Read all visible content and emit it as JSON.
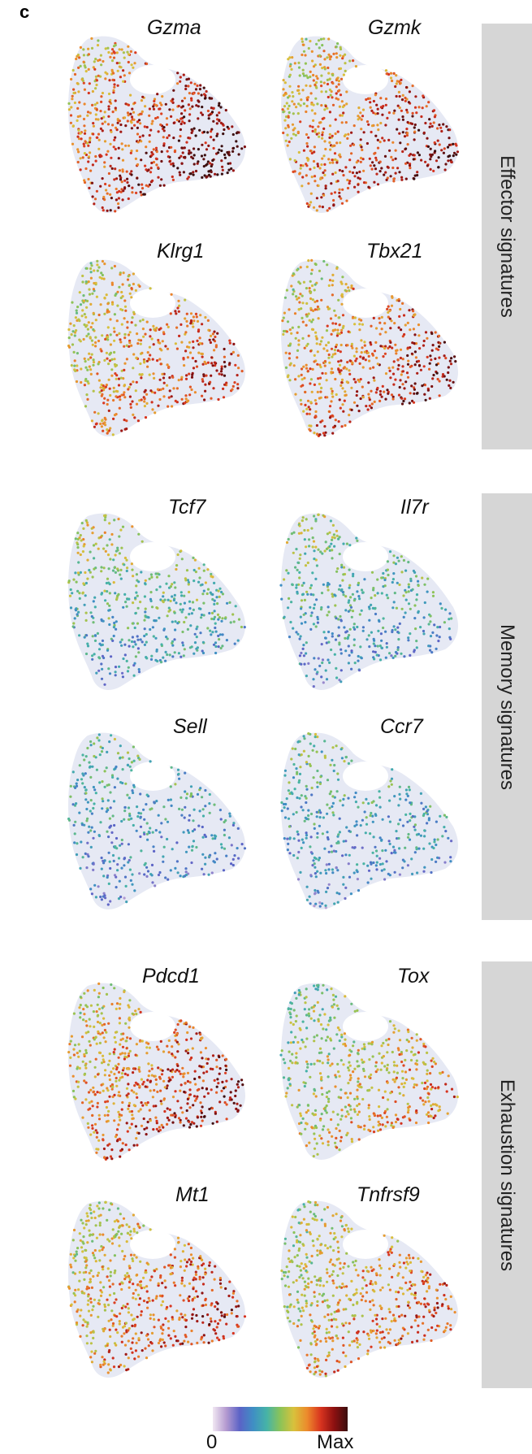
{
  "panel_label": "c",
  "groups": [
    {
      "label": "Effector signatures"
    },
    {
      "label": "Memory signatures"
    },
    {
      "label": "Exhaustion signatures"
    }
  ],
  "genes": [
    {
      "name": "Gzma",
      "group": 0,
      "level": 0.82
    },
    {
      "name": "Gzmk",
      "group": 0,
      "level": 0.75
    },
    {
      "name": "Klrg1",
      "group": 0,
      "level": 0.68
    },
    {
      "name": "Tbx21",
      "group": 0,
      "level": 0.72
    },
    {
      "name": "Tcf7",
      "group": 1,
      "level": 0.48
    },
    {
      "name": "Il7r",
      "group": 1,
      "level": 0.4
    },
    {
      "name": "Sell",
      "group": 1,
      "level": 0.3
    },
    {
      "name": "Ccr7",
      "group": 1,
      "level": 0.32
    },
    {
      "name": "Pdcd1",
      "group": 2,
      "level": 0.72
    },
    {
      "name": "Tox",
      "group": 2,
      "level": 0.55
    },
    {
      "name": "Mt1",
      "group": 2,
      "level": 0.68
    },
    {
      "name": "Tnfrsf9",
      "group": 2,
      "level": 0.62
    }
  ],
  "colorbar": {
    "min_label": "0",
    "max_label": "Max",
    "colors": [
      "#f1e7f2",
      "#b49ad0",
      "#5b63c6",
      "#3f8fc4",
      "#46b3a7",
      "#8bc358",
      "#d8c13c",
      "#ec8a2c",
      "#d8341f",
      "#8c1010",
      "#3a0e0e"
    ]
  }
}
